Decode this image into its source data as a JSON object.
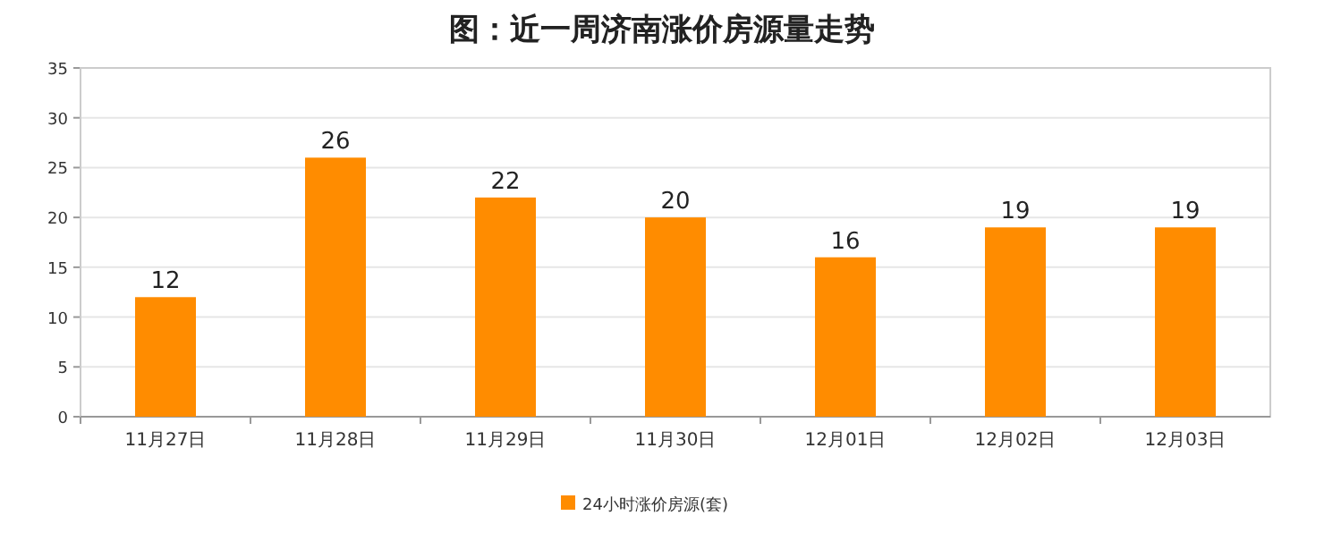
{
  "chart_data": {
    "type": "bar",
    "title": "图：近一周济南涨价房源量走势",
    "categories": [
      "11月27日",
      "11月28日",
      "11月29日",
      "11月30日",
      "12月01日",
      "12月02日",
      "12月03日"
    ],
    "series": [
      {
        "name": "24小时涨价房源(套)",
        "color": "#ff8c00",
        "values": [
          12,
          26,
          22,
          20,
          16,
          19,
          19
        ]
      }
    ],
    "ylim": [
      0,
      35
    ],
    "yticks": [
      0,
      5,
      10,
      15,
      20,
      25,
      30,
      35
    ],
    "grid": "y",
    "legend": "bottom",
    "data_labels": true
  }
}
